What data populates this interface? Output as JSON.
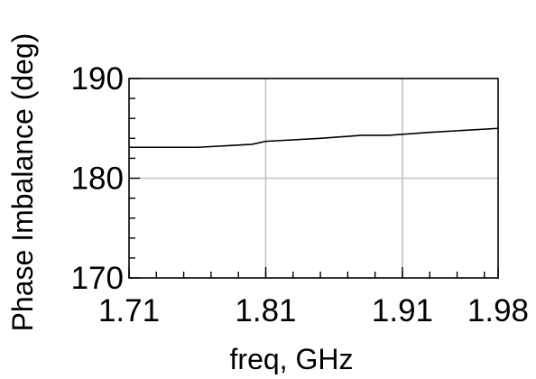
{
  "chart_data": {
    "type": "line",
    "title": "",
    "xlabel": "freq, GHz",
    "ylabel": "Phase Imbalance (deg)",
    "xlim": [
      1.71,
      1.98
    ],
    "ylim": [
      170,
      190
    ],
    "x_ticks": [
      1.71,
      1.81,
      1.91,
      1.98
    ],
    "x_tick_labels": [
      "1.71",
      "1.81",
      "1.91",
      "1.98"
    ],
    "y_ticks": [
      170,
      180,
      190
    ],
    "y_tick_labels": [
      "170",
      "180",
      "190"
    ],
    "grid": true,
    "series": [
      {
        "color": "#000000",
        "x": [
          1.71,
          1.76,
          1.8,
          1.81,
          1.85,
          1.88,
          1.9,
          1.93,
          1.98
        ],
        "y": [
          183.1,
          183.1,
          183.4,
          183.7,
          184.0,
          184.3,
          184.3,
          184.6,
          185.0
        ]
      }
    ],
    "grid_color": "#c0c0c0",
    "axis_color": "#000000"
  }
}
